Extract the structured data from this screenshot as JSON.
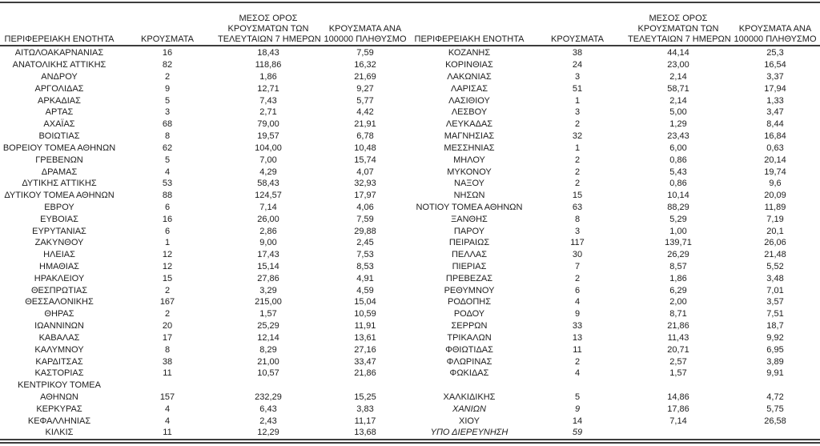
{
  "document": {
    "kind": "cases-by-regional-unit-table",
    "colors": {
      "background": "#ffffff",
      "text": "#1c1c1c",
      "rule": "#3d3d3d"
    }
  },
  "header": {
    "columns": [
      {
        "key": "region",
        "lines": [
          "ΠΕΡΙΦΕΡΕΙΑΚΗ ΕΝΟΤΗΤΑ"
        ]
      },
      {
        "key": "cases",
        "lines": [
          "ΚΡΟΥΣΜΑΤΑ"
        ]
      },
      {
        "key": "avg7",
        "lines": [
          "ΜΕΣΟΣ ΟΡΟΣ",
          "ΚΡΟΥΣΜΑΤΩΝ ΤΩΝ",
          "ΤΕΛΕΥΤΑΙΩΝ 7 ΗΜΕΡΩΝ"
        ]
      },
      {
        "key": "per100k",
        "lines": [
          "ΚΡΟΥΣΜΑΤΑ ΑΝΑ",
          "100000 ΠΛΗΘΥΣΜΟ"
        ]
      }
    ]
  },
  "tables": [
    {
      "id": "left",
      "rows": [
        {
          "region": "ΑΙΤΩΛΟΑΚΑΡΝΑΝΙΑΣ",
          "cases": "16",
          "avg7": "18,43",
          "per100k": "7,59"
        },
        {
          "region": "ΑΝΑΤΟΛΙΚΗΣ ΑΤΤΙΚΗΣ",
          "cases": "82",
          "avg7": "118,86",
          "per100k": "16,32"
        },
        {
          "region": "ΑΝΔΡΟΥ",
          "cases": "2",
          "avg7": "1,86",
          "per100k": "21,69"
        },
        {
          "region": "ΑΡΓΟΛΙΔΑΣ",
          "cases": "9",
          "avg7": "12,71",
          "per100k": "9,27"
        },
        {
          "region": "ΑΡΚΑΔΙΑΣ",
          "cases": "5",
          "avg7": "7,43",
          "per100k": "5,77"
        },
        {
          "region": "ΑΡΤΑΣ",
          "cases": "3",
          "avg7": "2,71",
          "per100k": "4,42"
        },
        {
          "region": "ΑΧΑΪΑΣ",
          "cases": "68",
          "avg7": "79,00",
          "per100k": "21,91"
        },
        {
          "region": "ΒΟΙΩΤΙΑΣ",
          "cases": "8",
          "avg7": "19,57",
          "per100k": "6,78"
        },
        {
          "region": "ΒΟΡΕΙΟΥ ΤΟΜΕΑ ΑΘΗΝΩΝ",
          "cases": "62",
          "avg7": "104,00",
          "per100k": "10,48"
        },
        {
          "region": "ΓΡΕΒΕΝΩΝ",
          "cases": "5",
          "avg7": "7,00",
          "per100k": "15,74"
        },
        {
          "region": "ΔΡΑΜΑΣ",
          "cases": "4",
          "avg7": "4,29",
          "per100k": "4,07"
        },
        {
          "region": "ΔΥΤΙΚΗΣ ΑΤΤΙΚΗΣ",
          "cases": "53",
          "avg7": "58,43",
          "per100k": "32,93"
        },
        {
          "region": "ΔΥΤΙΚΟΥ ΤΟΜΕΑ ΑΘΗΝΩΝ",
          "cases": "88",
          "avg7": "124,57",
          "per100k": "17,97"
        },
        {
          "region": "ΕΒΡΟΥ",
          "cases": "6",
          "avg7": "7,14",
          "per100k": "4,06"
        },
        {
          "region": "ΕΥΒΟΙΑΣ",
          "cases": "16",
          "avg7": "26,00",
          "per100k": "7,59"
        },
        {
          "region": "ΕΥΡΥΤΑΝΙΑΣ",
          "cases": "6",
          "avg7": "2,86",
          "per100k": "29,88"
        },
        {
          "region": "ΖΑΚΥΝΘΟΥ",
          "cases": "1",
          "avg7": "9,00",
          "per100k": "2,45"
        },
        {
          "region": "ΗΛΕΙΑΣ",
          "cases": "12",
          "avg7": "17,43",
          "per100k": "7,53"
        },
        {
          "region": "ΗΜΑΘΙΑΣ",
          "cases": "12",
          "avg7": "15,14",
          "per100k": "8,53"
        },
        {
          "region": "ΗΡΑΚΛΕΙΟΥ",
          "cases": "15",
          "avg7": "27,86",
          "per100k": "4,91"
        },
        {
          "region": "ΘΕΣΠΡΩΤΙΑΣ",
          "cases": "2",
          "avg7": "3,29",
          "per100k": "4,59"
        },
        {
          "region": "ΘΕΣΣΑΛΟΝΙΚΗΣ",
          "cases": "167",
          "avg7": "215,00",
          "per100k": "15,04"
        },
        {
          "region": "ΘΗΡΑΣ",
          "cases": "2",
          "avg7": "1,57",
          "per100k": "10,59"
        },
        {
          "region": "ΙΩΑΝΝΙΝΩΝ",
          "cases": "20",
          "avg7": "25,29",
          "per100k": "11,91"
        },
        {
          "region": "ΚΑΒΑΛΑΣ",
          "cases": "17",
          "avg7": "12,14",
          "per100k": "13,61"
        },
        {
          "region": "ΚΑΛΥΜΝΟΥ",
          "cases": "8",
          "avg7": "8,29",
          "per100k": "27,16"
        },
        {
          "region": "ΚΑΡΔΙΤΣΑΣ",
          "cases": "38",
          "avg7": "21,00",
          "per100k": "33,47"
        },
        {
          "region": "ΚΑΣΤΟΡΙΑΣ",
          "cases": "11",
          "avg7": "10,57",
          "per100k": "21,86"
        },
        {
          "region": "ΚΕΝΤΡΙΚΟΥ ΤΟΜΕΑ",
          "cases": "",
          "avg7": "",
          "per100k": ""
        },
        {
          "region": "ΑΘΗΝΩΝ",
          "cases": "157",
          "avg7": "232,29",
          "per100k": "15,25"
        },
        {
          "region": "ΚΕΡΚΥΡΑΣ",
          "cases": "4",
          "avg7": "6,43",
          "per100k": "3,83"
        },
        {
          "region": "ΚΕΦΑΛΛΗΝΙΑΣ",
          "cases": "4",
          "avg7": "2,43",
          "per100k": "11,17"
        },
        {
          "region": "ΚΙΛΚΙΣ",
          "cases": "11",
          "avg7": "12,29",
          "per100k": "13,68"
        }
      ]
    },
    {
      "id": "right",
      "rows": [
        {
          "region": "ΚΟΖΑΝΗΣ",
          "cases": "38",
          "avg7": "44,14",
          "per100k": "25,3"
        },
        {
          "region": "ΚΟΡΙΝΘΙΑΣ",
          "cases": "24",
          "avg7": "23,00",
          "per100k": "16,54"
        },
        {
          "region": "ΛΑΚΩΝΙΑΣ",
          "cases": "3",
          "avg7": "2,14",
          "per100k": "3,37"
        },
        {
          "region": "ΛΑΡΙΣΑΣ",
          "cases": "51",
          "avg7": "58,71",
          "per100k": "17,94"
        },
        {
          "region": "ΛΑΣΙΘΙΟΥ",
          "cases": "1",
          "avg7": "2,14",
          "per100k": "1,33"
        },
        {
          "region": "ΛΕΣΒΟΥ",
          "cases": "3",
          "avg7": "5,00",
          "per100k": "3,47"
        },
        {
          "region": "ΛΕΥΚΑΔΑΣ",
          "cases": "2",
          "avg7": "1,29",
          "per100k": "8,44"
        },
        {
          "region": "ΜΑΓΝΗΣΙΑΣ",
          "cases": "32",
          "avg7": "23,43",
          "per100k": "16,84"
        },
        {
          "region": "ΜΕΣΣΗΝΙΑΣ",
          "cases": "1",
          "avg7": "6,00",
          "per100k": "0,63"
        },
        {
          "region": "ΜΗΛΟΥ",
          "cases": "2",
          "avg7": "0,86",
          "per100k": "20,14"
        },
        {
          "region": "ΜΥΚΟΝΟΥ",
          "cases": "2",
          "avg7": "5,43",
          "per100k": "19,74"
        },
        {
          "region": "ΝΑΞΟΥ",
          "cases": "2",
          "avg7": "0,86",
          "per100k": "9,6"
        },
        {
          "region": "ΝΗΣΩΝ",
          "cases": "15",
          "avg7": "10,14",
          "per100k": "20,09"
        },
        {
          "region": "ΝΟΤΙΟΥ ΤΟΜΕΑ ΑΘΗΝΩΝ",
          "cases": "63",
          "avg7": "88,29",
          "per100k": "11,89"
        },
        {
          "region": "ΞΑΝΘΗΣ",
          "cases": "8",
          "avg7": "5,29",
          "per100k": "7,19"
        },
        {
          "region": "ΠΑΡΟΥ",
          "cases": "3",
          "avg7": "1,00",
          "per100k": "20,1"
        },
        {
          "region": "ΠΕΙΡΑΙΩΣ",
          "cases": "117",
          "avg7": "139,71",
          "per100k": "26,06"
        },
        {
          "region": "ΠΕΛΛΑΣ",
          "cases": "30",
          "avg7": "26,29",
          "per100k": "21,48"
        },
        {
          "region": "ΠΙΕΡΙΑΣ",
          "cases": "7",
          "avg7": "8,57",
          "per100k": "5,52"
        },
        {
          "region": "ΠΡΕΒΕΖΑΣ",
          "cases": "2",
          "avg7": "1,86",
          "per100k": "3,48"
        },
        {
          "region": "ΡΕΘΥΜΝΟΥ",
          "cases": "6",
          "avg7": "6,29",
          "per100k": "7,01"
        },
        {
          "region": "ΡΟΔΟΠΗΣ",
          "cases": "4",
          "avg7": "2,00",
          "per100k": "3,57"
        },
        {
          "region": "ΡΟΔΟΥ",
          "cases": "9",
          "avg7": "8,71",
          "per100k": "7,51"
        },
        {
          "region": "ΣΕΡΡΩΝ",
          "cases": "33",
          "avg7": "21,86",
          "per100k": "18,7"
        },
        {
          "region": "ΤΡΙΚΑΛΩΝ",
          "cases": "13",
          "avg7": "11,43",
          "per100k": "9,92"
        },
        {
          "region": "ΦΘΙΩΤΙΔΑΣ",
          "cases": "11",
          "avg7": "20,71",
          "per100k": "6,95"
        },
        {
          "region": "ΦΛΩΡΙΝΑΣ",
          "cases": "2",
          "avg7": "2,57",
          "per100k": "3,89"
        },
        {
          "region": "ΦΩΚΙΔΑΣ",
          "cases": "4",
          "avg7": "1,57",
          "per100k": "9,91"
        },
        {
          "region": "",
          "cases": "",
          "avg7": "",
          "per100k": ""
        },
        {
          "region": "ΧΑΛΚΙΔΙΚΗΣ",
          "cases": "5",
          "avg7": "14,86",
          "per100k": "4,72"
        },
        {
          "region": "ΧΑΝΙΩΝ",
          "cases": "9",
          "avg7": "17,86",
          "per100k": "5,75",
          "italic": true
        },
        {
          "region": "ΧΙΟΥ",
          "cases": "14",
          "avg7": "7,14",
          "per100k": "26,58"
        },
        {
          "region": "ΥΠΟ ΔΙΕΡΕΥΝΗΣΗ",
          "cases": "59",
          "avg7": "",
          "per100k": "",
          "italic": true
        }
      ]
    }
  ]
}
